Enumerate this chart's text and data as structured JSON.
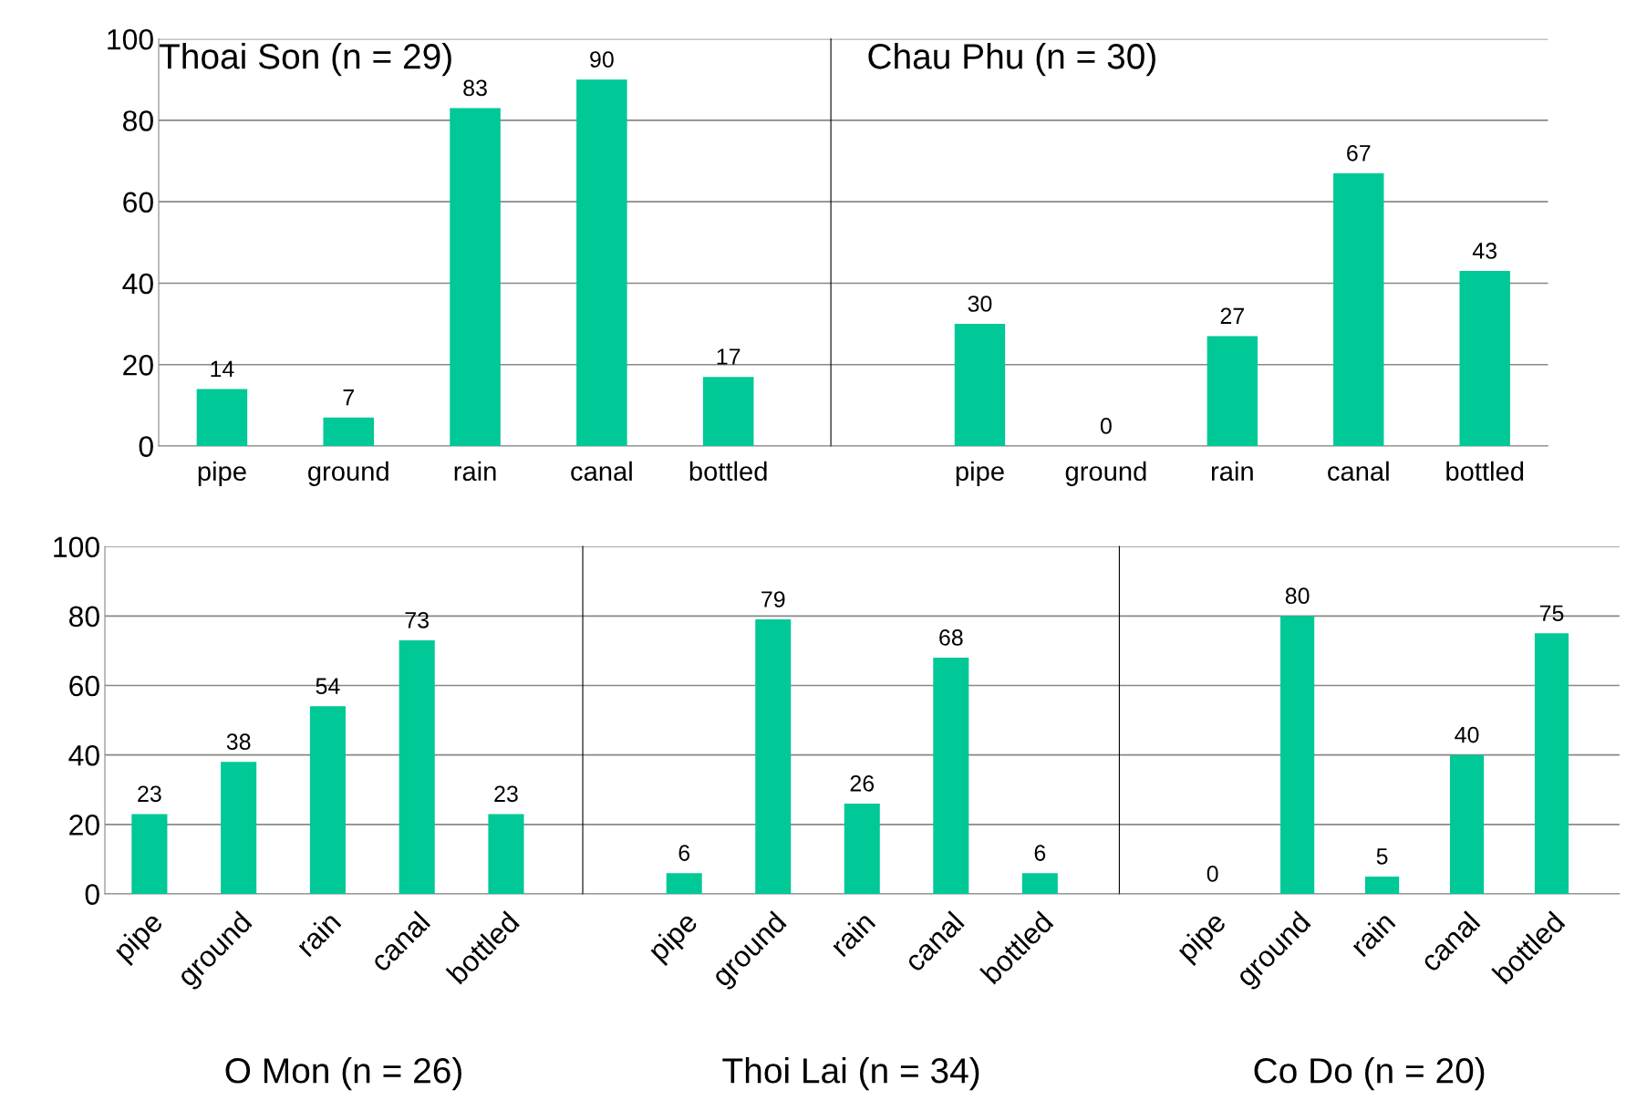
{
  "chart_data": [
    {
      "type": "bar",
      "title": "Thoai Son (n = 29)",
      "categories": [
        "pipe",
        "ground",
        "rain",
        "canal",
        "bottled"
      ],
      "values": [
        14,
        7,
        83,
        90,
        17
      ],
      "color": "#00c896",
      "ylim": [
        0,
        100
      ],
      "yticks": [
        0,
        20,
        40,
        60,
        80,
        100
      ],
      "grid": "y",
      "data_labels": true
    },
    {
      "type": "bar",
      "title": "Chau Phu (n = 30)",
      "categories": [
        "pipe",
        "ground",
        "rain",
        "canal",
        "bottled"
      ],
      "values": [
        30,
        0,
        27,
        67,
        43
      ],
      "color": "#00c896",
      "ylim": [
        0,
        100
      ],
      "yticks": [
        0,
        20,
        40,
        60,
        80,
        100
      ],
      "grid": "y",
      "data_labels": true,
      "tick_labels": "x"
    },
    {
      "type": "bar",
      "title": "O Mon (n = 26)",
      "categories": [
        "pipe",
        "ground",
        "rain",
        "canal",
        "bottled"
      ],
      "values": [
        23,
        38,
        54,
        73,
        23
      ],
      "color": "#00c896",
      "ylim": [
        0,
        100
      ],
      "yticks": [
        0,
        20,
        40,
        60,
        80,
        100
      ],
      "grid": "y",
      "data_labels": true
    },
    {
      "type": "bar",
      "title": "Thoi Lai (n = 34)",
      "categories": [
        "pipe",
        "ground",
        "rain",
        "canal",
        "bottled"
      ],
      "values": [
        6,
        79,
        26,
        68,
        6
      ],
      "color": "#00c896",
      "ylim": [
        0,
        100
      ],
      "yticks": [
        0,
        20,
        40,
        60,
        80,
        100
      ],
      "grid": "y",
      "data_labels": true,
      "tick_labels": "x"
    },
    {
      "type": "bar",
      "title": "Co Do (n = 20)",
      "categories": [
        "pipe",
        "ground",
        "rain",
        "canal",
        "bottled"
      ],
      "values": [
        0,
        80,
        5,
        40,
        75
      ],
      "color": "#00c896",
      "ylim": [
        0,
        100
      ],
      "yticks": [
        0,
        20,
        40,
        60,
        80,
        100
      ],
      "grid": "y",
      "data_labels": true,
      "tick_labels": "x"
    }
  ]
}
